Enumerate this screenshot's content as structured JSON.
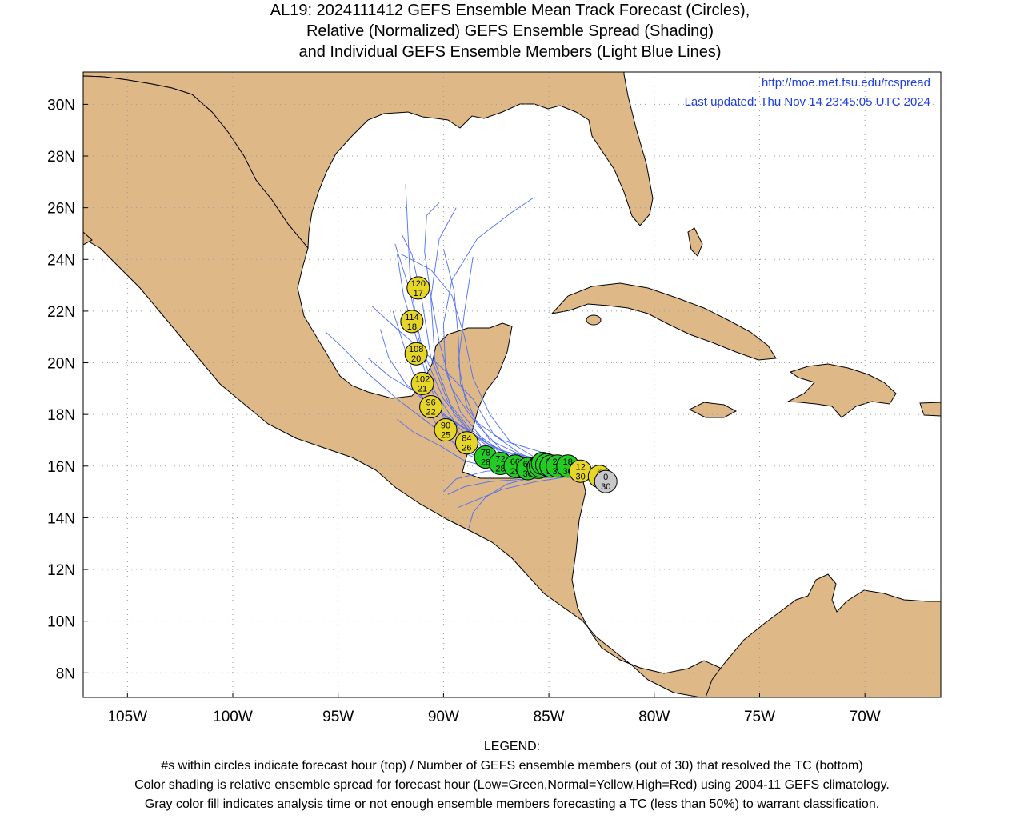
{
  "title": {
    "lines": [
      "AL19: 2024111412 GEFS Ensemble Mean Track Forecast (Circles),",
      "Relative (Normalized) GEFS Ensemble Spread (Shading)",
      "and Individual GEFS Ensemble Members (Light Blue Lines)"
    ]
  },
  "map": {
    "url": "http://moe.met.fsu.edu/tcspread",
    "last_updated": "Last updated: Thu Nov 14 23:45:05 UTC 2024",
    "lon_ticks": [
      "105W",
      "100W",
      "95W",
      "90W",
      "85W",
      "80W",
      "75W",
      "70W"
    ],
    "lat_ticks": [
      "30N",
      "28N",
      "26N",
      "24N",
      "22N",
      "20N",
      "18N",
      "16N",
      "14N",
      "12N",
      "10N",
      "8N"
    ],
    "colors": {
      "land": "#deb887",
      "ocean": "#ffffff",
      "member_track": "#4f6ef7",
      "low_spread": "#22cc22",
      "normal_spread": "#e6d62a",
      "no_classification": "#c8c8c8",
      "url_text": "#1f3fe0"
    }
  },
  "track_points": [
    {
      "hour": "0",
      "members": "30",
      "lon": -82.3,
      "lat": 15.4,
      "color": "#c8c8c8"
    },
    {
      "hour": "6",
      "members": "30",
      "lon": -82.6,
      "lat": 15.6,
      "color": "#e6d62a"
    },
    {
      "hour": "12",
      "members": "30",
      "lon": -83.5,
      "lat": 15.8,
      "color": "#e6d62a"
    },
    {
      "hour": "18",
      "members": "30",
      "lon": -84.1,
      "lat": 16.0,
      "color": "#22cc22"
    },
    {
      "hour": "24",
      "members": "30",
      "lon": -84.6,
      "lat": 16.0,
      "color": "#22cc22"
    },
    {
      "hour": "30",
      "members": "30",
      "lon": -84.9,
      "lat": 16.0,
      "color": "#22cc22"
    },
    {
      "hour": "36",
      "members": "30",
      "lon": -85.1,
      "lat": 16.05,
      "color": "#22cc22"
    },
    {
      "hour": "42",
      "members": "30",
      "lon": -85.3,
      "lat": 16.1,
      "color": "#22cc22"
    },
    {
      "hour": "48",
      "members": "30",
      "lon": -85.4,
      "lat": 16.0,
      "color": "#22cc22"
    },
    {
      "hour": "54",
      "members": "30",
      "lon": -85.5,
      "lat": 15.95,
      "color": "#22cc22"
    },
    {
      "hour": "60",
      "members": "30",
      "lon": -86.0,
      "lat": 15.9,
      "color": "#22cc22"
    },
    {
      "hour": "66",
      "members": "29",
      "lon": -86.6,
      "lat": 16.0,
      "color": "#22cc22"
    },
    {
      "hour": "72",
      "members": "28",
      "lon": -87.3,
      "lat": 16.1,
      "color": "#22cc22"
    },
    {
      "hour": "78",
      "members": "28",
      "lon": -88.0,
      "lat": 16.35,
      "color": "#22cc22"
    },
    {
      "hour": "84",
      "members": "26",
      "lon": -88.9,
      "lat": 16.9,
      "color": "#e6d62a"
    },
    {
      "hour": "90",
      "members": "25",
      "lon": -89.9,
      "lat": 17.4,
      "color": "#e6d62a"
    },
    {
      "hour": "96",
      "members": "22",
      "lon": -90.6,
      "lat": 18.3,
      "color": "#e6d62a"
    },
    {
      "hour": "102",
      "members": "21",
      "lon": -91.0,
      "lat": 19.2,
      "color": "#e6d62a"
    },
    {
      "hour": "108",
      "members": "20",
      "lon": -91.3,
      "lat": 20.35,
      "color": "#e6d62a"
    },
    {
      "hour": "114",
      "members": "18",
      "lon": -91.5,
      "lat": 21.6,
      "color": "#e6d62a"
    },
    {
      "hour": "120",
      "members": "17",
      "lon": -91.2,
      "lat": 22.9,
      "color": "#e6d62a"
    }
  ],
  "member_tracks": [
    [
      [
        -82.3,
        15.4
      ],
      [
        -83.5,
        15.9
      ],
      [
        -85.0,
        16.1
      ],
      [
        -86.5,
        16.2
      ],
      [
        -88.0,
        16.6
      ],
      [
        -89.3,
        17.5
      ],
      [
        -90.5,
        19.0
      ],
      [
        -91.2,
        21.0
      ],
      [
        -91.6,
        23.5
      ],
      [
        -91.8,
        26.9
      ]
    ],
    [
      [
        -82.3,
        15.4
      ],
      [
        -83.6,
        15.7
      ],
      [
        -85.2,
        15.9
      ],
      [
        -86.8,
        16.1
      ],
      [
        -88.2,
        16.8
      ],
      [
        -89.5,
        18.0
      ],
      [
        -90.4,
        20.0
      ],
      [
        -90.6,
        22.5
      ],
      [
        -90.2,
        24.8
      ],
      [
        -89.4,
        26.0
      ]
    ],
    [
      [
        -82.3,
        15.4
      ],
      [
        -83.8,
        15.8
      ],
      [
        -85.4,
        16.0
      ],
      [
        -87.0,
        16.2
      ],
      [
        -88.6,
        17.2
      ],
      [
        -90.0,
        18.6
      ],
      [
        -91.0,
        20.5
      ],
      [
        -91.6,
        22.8
      ],
      [
        -92.3,
        24.6
      ]
    ],
    [
      [
        -82.3,
        15.4
      ],
      [
        -84.0,
        15.9
      ],
      [
        -85.8,
        16.0
      ],
      [
        -87.6,
        16.0
      ],
      [
        -89.2,
        16.7
      ],
      [
        -90.6,
        17.6
      ],
      [
        -92.2,
        18.6
      ],
      [
        -93.6,
        19.6
      ],
      [
        -94.8,
        20.6
      ],
      [
        -95.6,
        21.2
      ]
    ],
    [
      [
        -82.3,
        15.4
      ],
      [
        -84.0,
        15.7
      ],
      [
        -85.6,
        15.6
      ],
      [
        -87.0,
        15.3
      ],
      [
        -88.0,
        14.8
      ],
      [
        -88.6,
        14.2
      ],
      [
        -88.8,
        13.6
      ]
    ],
    [
      [
        -82.3,
        15.4
      ],
      [
        -84.2,
        15.9
      ],
      [
        -86.0,
        16.3
      ],
      [
        -87.8,
        17.0
      ],
      [
        -88.9,
        18.3
      ],
      [
        -89.3,
        20.0
      ],
      [
        -89.0,
        22.0
      ],
      [
        -88.6,
        24.1
      ]
    ],
    [
      [
        -82.3,
        15.4
      ],
      [
        -83.9,
        15.8
      ],
      [
        -85.5,
        16.2
      ],
      [
        -87.2,
        16.6
      ],
      [
        -88.4,
        17.6
      ],
      [
        -89.2,
        19.2
      ],
      [
        -89.3,
        21.0
      ],
      [
        -89.5,
        22.8
      ],
      [
        -90.0,
        24.4
      ]
    ],
    [
      [
        -82.3,
        15.4
      ],
      [
        -84.1,
        15.8
      ],
      [
        -86.2,
        15.9
      ],
      [
        -88.0,
        15.8
      ],
      [
        -89.4,
        15.5
      ],
      [
        -90.0,
        15.0
      ]
    ],
    [
      [
        -82.3,
        15.4
      ],
      [
        -83.7,
        15.8
      ],
      [
        -85.3,
        15.9
      ],
      [
        -86.9,
        16.3
      ],
      [
        -88.3,
        17.1
      ],
      [
        -89.8,
        17.9
      ],
      [
        -91.2,
        18.8
      ],
      [
        -92.6,
        19.5
      ],
      [
        -93.6,
        20.2
      ]
    ],
    [
      [
        -82.3,
        15.4
      ],
      [
        -83.9,
        16.0
      ],
      [
        -85.6,
        16.3
      ],
      [
        -87.3,
        16.6
      ],
      [
        -88.7,
        17.4
      ],
      [
        -89.8,
        18.5
      ],
      [
        -90.6,
        20.2
      ],
      [
        -91.0,
        22.3
      ],
      [
        -91.5,
        24.2
      ],
      [
        -92.0,
        25.0
      ]
    ],
    [
      [
        -82.3,
        15.4
      ],
      [
        -84.0,
        15.6
      ],
      [
        -85.6,
        15.4
      ],
      [
        -87.2,
        15.1
      ],
      [
        -88.4,
        14.7
      ],
      [
        -89.3,
        14.4
      ]
    ],
    [
      [
        -82.3,
        15.4
      ],
      [
        -83.8,
        15.9
      ],
      [
        -85.4,
        16.2
      ],
      [
        -86.8,
        16.9
      ],
      [
        -87.8,
        18.0
      ],
      [
        -88.6,
        19.4
      ],
      [
        -89.0,
        21.0
      ],
      [
        -89.6,
        22.6
      ],
      [
        -90.6,
        23.6
      ],
      [
        -92.0,
        24.2
      ]
    ],
    [
      [
        -82.3,
        15.4
      ],
      [
        -83.6,
        15.8
      ],
      [
        -85.0,
        16.0
      ],
      [
        -86.4,
        16.5
      ],
      [
        -87.6,
        17.2
      ],
      [
        -88.6,
        18.6
      ],
      [
        -89.8,
        19.6
      ],
      [
        -90.9,
        20.4
      ],
      [
        -92.2,
        21.3
      ],
      [
        -93.4,
        22.2
      ]
    ],
    [
      [
        -82.3,
        15.4
      ],
      [
        -84.2,
        15.8
      ],
      [
        -86.0,
        15.8
      ],
      [
        -87.6,
        16.0
      ],
      [
        -89.0,
        16.5
      ],
      [
        -90.2,
        17.4
      ],
      [
        -91.0,
        18.6
      ],
      [
        -91.7,
        20.2
      ],
      [
        -92.4,
        22.0
      ]
    ],
    [
      [
        -82.3,
        15.4
      ],
      [
        -84.0,
        16.2
      ],
      [
        -85.6,
        16.6
      ],
      [
        -87.2,
        17.0
      ],
      [
        -88.6,
        17.8
      ],
      [
        -89.6,
        19.0
      ],
      [
        -90.2,
        20.8
      ],
      [
        -90.6,
        22.6
      ],
      [
        -90.9,
        24.3
      ],
      [
        -90.8,
        25.7
      ],
      [
        -90.2,
        26.2
      ]
    ],
    [
      [
        -82.3,
        15.4
      ],
      [
        -83.9,
        15.7
      ],
      [
        -85.7,
        15.8
      ],
      [
        -87.5,
        15.9
      ],
      [
        -89.0,
        16.2
      ],
      [
        -90.2,
        16.8
      ],
      [
        -91.4,
        17.3
      ],
      [
        -92.2,
        17.8
      ]
    ],
    [
      [
        -82.3,
        15.4
      ],
      [
        -84.3,
        15.9
      ],
      [
        -86.3,
        16.2
      ],
      [
        -88.0,
        16.9
      ],
      [
        -89.2,
        18.1
      ],
      [
        -89.9,
        19.7
      ],
      [
        -90.0,
        21.5
      ],
      [
        -89.6,
        23.2
      ],
      [
        -88.4,
        24.8
      ],
      [
        -86.8,
        25.8
      ],
      [
        -85.7,
        26.4
      ]
    ],
    [
      [
        -82.3,
        15.4
      ],
      [
        -83.7,
        15.8
      ],
      [
        -85.2,
        16.1
      ],
      [
        -86.6,
        16.4
      ],
      [
        -88.0,
        16.9
      ],
      [
        -89.3,
        17.6
      ],
      [
        -90.6,
        18.3
      ],
      [
        -91.8,
        19.2
      ],
      [
        -92.6,
        20.2
      ],
      [
        -93.0,
        21.3
      ]
    ],
    [
      [
        -82.3,
        15.4
      ],
      [
        -84.0,
        15.9
      ],
      [
        -85.7,
        16.1
      ],
      [
        -87.4,
        16.3
      ],
      [
        -88.8,
        16.9
      ],
      [
        -90.0,
        17.9
      ],
      [
        -90.8,
        19.4
      ],
      [
        -91.3,
        21.0
      ],
      [
        -91.9,
        22.6
      ],
      [
        -92.2,
        24.2
      ]
    ],
    [
      [
        -82.3,
        15.4
      ],
      [
        -84.2,
        15.6
      ],
      [
        -86.1,
        15.5
      ],
      [
        -87.8,
        15.4
      ],
      [
        -89.0,
        15.2
      ],
      [
        -89.8,
        14.9
      ]
    ]
  ]
}
